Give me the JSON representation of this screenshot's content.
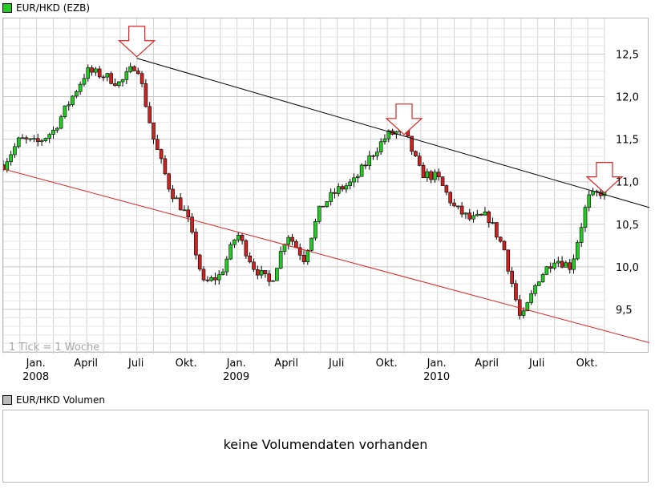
{
  "colors": {
    "up": "#22cc22",
    "down": "#cc2222",
    "grid": "#d3d3d3",
    "resistance": "#000000",
    "support": "#dd2222",
    "arrow": "#dd2222"
  },
  "price_legend": {
    "title": "EUR/HKD (EZB)",
    "swatch_color": "#22cc22"
  },
  "volume_legend": {
    "title": "EUR/HKD Volumen",
    "swatch_color": "#bbbbbb"
  },
  "volume_message": "keine Volumendaten vorhanden",
  "chart_data": {
    "type": "candlestick",
    "interval_note": "1 Tick = 1 Woche",
    "y_ticks": [
      "12,5",
      "12,0",
      "11,5",
      "11,0",
      "10,5",
      "10,0",
      "9,5"
    ],
    "y_tick_values": [
      12.5,
      12.0,
      11.5,
      11.0,
      10.5,
      10.0,
      9.5
    ],
    "ylim": [
      9.0,
      12.9
    ],
    "x_ticks": [
      {
        "label": "Jan.",
        "date": "2008-01"
      },
      {
        "label": "April",
        "date": "2008-04"
      },
      {
        "label": "Juli",
        "date": "2008-07"
      },
      {
        "label": "Okt.",
        "date": "2008-10"
      },
      {
        "label": "Jan.",
        "date": "2009-01"
      },
      {
        "label": "April",
        "date": "2009-04"
      },
      {
        "label": "Juli",
        "date": "2009-07"
      },
      {
        "label": "Okt.",
        "date": "2009-10"
      },
      {
        "label": "Jan.",
        "date": "2010-01"
      },
      {
        "label": "April",
        "date": "2010-04"
      },
      {
        "label": "Juli",
        "date": "2010-07"
      },
      {
        "label": "Okt.",
        "date": "2010-10"
      }
    ],
    "year_labels": [
      {
        "label": "2008",
        "date": "2008-01"
      },
      {
        "label": "2009",
        "date": "2009-01"
      },
      {
        "label": "2010",
        "date": "2010-01"
      }
    ],
    "x_start": "2007-11",
    "x_end": "2010-11",
    "anchors": [
      [
        "2007-11",
        11.2
      ],
      [
        "2007-12",
        11.5
      ],
      [
        "2008-01",
        11.45
      ],
      [
        "2008-02",
        11.6
      ],
      [
        "2008-03",
        11.95
      ],
      [
        "2008-04",
        12.3
      ],
      [
        "2008-05",
        12.25
      ],
      [
        "2008-06",
        12.15
      ],
      [
        "2008-07",
        12.4
      ],
      [
        "2008-08",
        11.5
      ],
      [
        "2008-09",
        10.9
      ],
      [
        "2008-10",
        10.6
      ],
      [
        "2008-11",
        9.8
      ],
      [
        "2008-12",
        9.9
      ],
      [
        "2009-01",
        10.4
      ],
      [
        "2009-02",
        10.0
      ],
      [
        "2009-03",
        9.8
      ],
      [
        "2009-04",
        10.4
      ],
      [
        "2009-05",
        10.1
      ],
      [
        "2009-06",
        10.7
      ],
      [
        "2009-07",
        10.9
      ],
      [
        "2009-08",
        11.0
      ],
      [
        "2009-09",
        11.3
      ],
      [
        "2009-10",
        11.55
      ],
      [
        "2009-11",
        11.6
      ],
      [
        "2009-12",
        11.1
      ],
      [
        "2010-01",
        11.05
      ],
      [
        "2010-02",
        10.7
      ],
      [
        "2010-03",
        10.55
      ],
      [
        "2010-04",
        10.6
      ],
      [
        "2010-05",
        10.2
      ],
      [
        "2010-06",
        9.35
      ],
      [
        "2010-07",
        9.85
      ],
      [
        "2010-08",
        10.1
      ],
      [
        "2010-09",
        10.0
      ],
      [
        "2010-10",
        10.8
      ],
      [
        "2010-11",
        10.9
      ]
    ],
    "resistance_line": {
      "from": [
        "2008-07",
        12.45
      ],
      "to": [
        "2010-11",
        10.85
      ]
    },
    "support_line": {
      "from": [
        "2007-11",
        11.15
      ],
      "to": [
        "2010-11",
        9.25
      ]
    },
    "arrows": [
      "2008-07",
      "2009-11",
      "2010-11"
    ]
  }
}
